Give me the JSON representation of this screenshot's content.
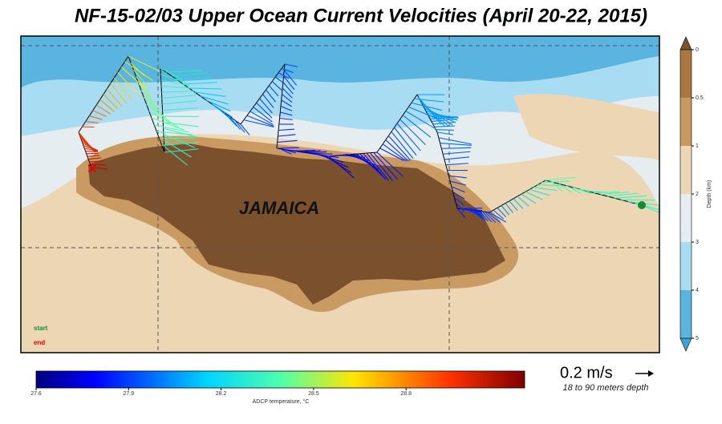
{
  "title": "NF-15-02/03 Upper Ocean Current Velocities (April 20-22, 2015)",
  "map": {
    "island_label": "JAMAICA",
    "legend": {
      "start": "start",
      "end": "end"
    }
  },
  "depth_colorbar": {
    "label": "Depth (km)",
    "ticks": [
      0,
      0.5,
      1,
      2,
      3,
      4,
      5
    ]
  },
  "temperature_colorbar": {
    "label": "ADCP temperature, °C",
    "ticks": [
      27.6,
      27.9,
      28.2,
      28.5,
      28.8
    ]
  },
  "scale": {
    "speed": "0.2 m/s",
    "depth_range": "18 to 90 meters depth"
  }
}
